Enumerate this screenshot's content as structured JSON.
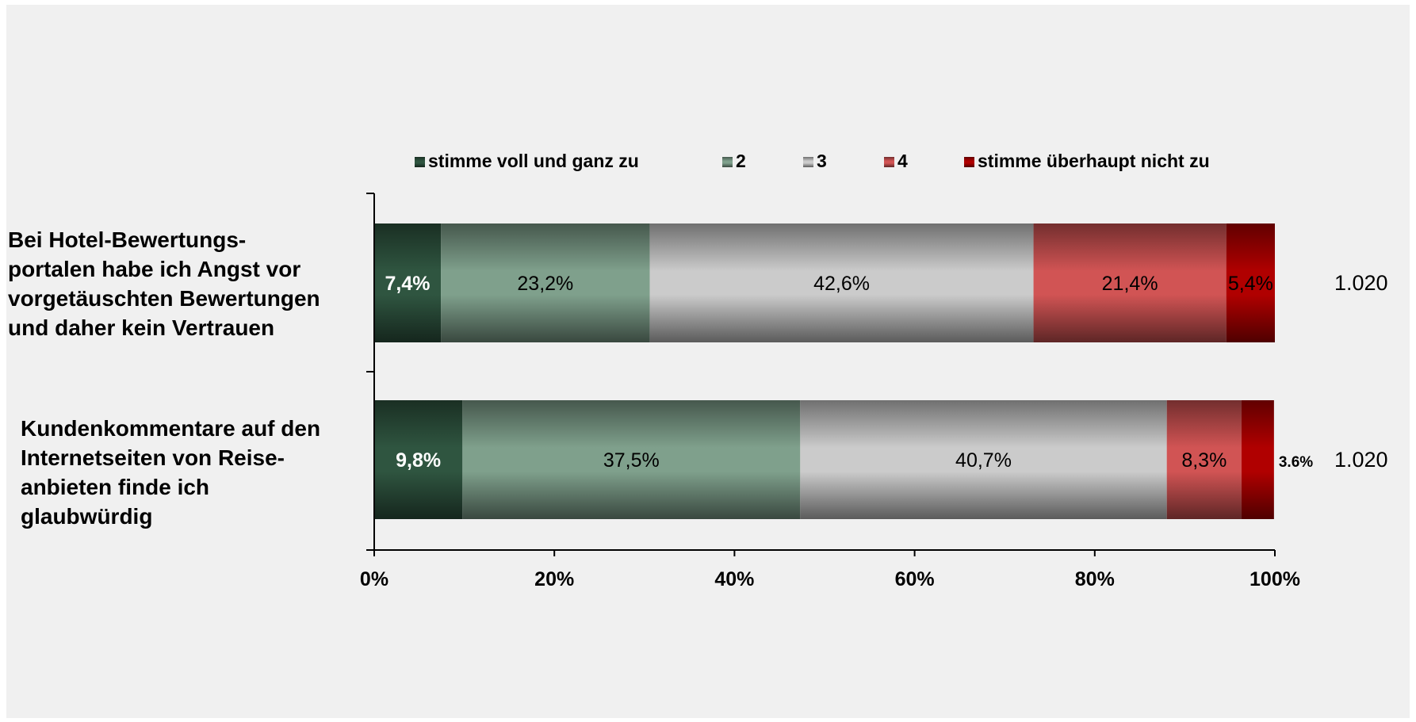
{
  "chart_data": {
    "type": "bar",
    "orientation": "horizontal",
    "stacked": true,
    "title": "",
    "xlabel": "",
    "ylabel": "",
    "xlim": [
      0,
      100
    ],
    "x_ticks": [
      "0%",
      "20%",
      "40%",
      "60%",
      "80%",
      "100%"
    ],
    "legend_position": "top",
    "grid": false,
    "categories": [
      "Bei Hotel-Bewertungs- portalen habe ich Angst vor vorgetäuschten Bewertungen und daher kein Vertrauen",
      "Kundenkommentare auf den Internetseiten von Reise- anbieten finde ich glaubwürdig"
    ],
    "category_lines": [
      [
        "Bei Hotel-Bewertungs-",
        "portalen habe ich Angst vor",
        "vorgetäuschten Bewertungen",
        "und daher kein Vertrauen"
      ],
      [
        "Kundenkommentare auf den",
        "Internetseiten von Reise-",
        "anbieten finde ich",
        "glaubwürdig"
      ]
    ],
    "series": [
      {
        "name": "stimme voll und ganz zu",
        "values": [
          7.4,
          9.8
        ],
        "labels": [
          "7,4%",
          "9,8%"
        ],
        "color": "#2f5540",
        "label_color": "#ffffff"
      },
      {
        "name": "2",
        "values": [
          23.2,
          37.5
        ],
        "labels": [
          "23,2%",
          "37,5%"
        ],
        "color": "#7fa08c",
        "label_color": "#000000"
      },
      {
        "name": "3",
        "values": [
          42.6,
          40.7
        ],
        "labels": [
          "42,6%",
          "40,7%"
        ],
        "color": "#cbcbcb",
        "label_color": "#000000"
      },
      {
        "name": "4",
        "values": [
          21.4,
          8.3
        ],
        "labels": [
          "21,4%",
          "8,3%"
        ],
        "color": "#d15454",
        "label_color": "#000000"
      },
      {
        "name": "stimme überhaupt nicht zu",
        "values": [
          5.4,
          3.6
        ],
        "labels": [
          "5,4%",
          "3.6%"
        ],
        "color": "#b00000",
        "label_color": "#000000"
      }
    ],
    "n_values": [
      "1.020",
      "1.020"
    ]
  }
}
